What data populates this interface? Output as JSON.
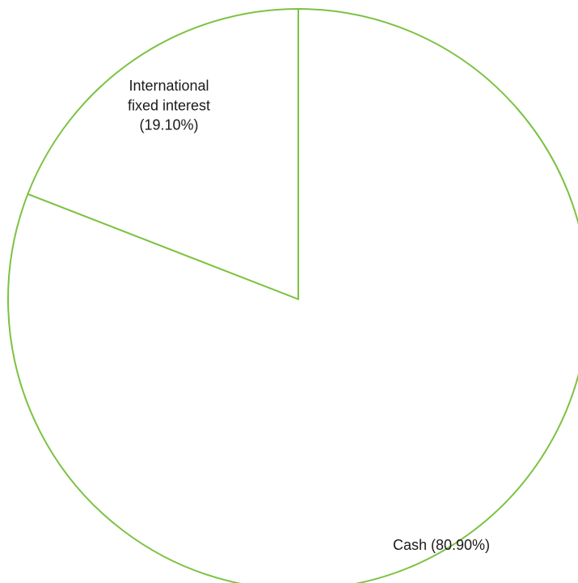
{
  "chart_data": {
    "type": "pie",
    "start_angle_deg": 0,
    "direction": "clockwise",
    "slices": [
      {
        "label": "Cash (80.90%)",
        "value": 80.9
      },
      {
        "label": "International fixed interest (19.10%)",
        "value": 19.1
      }
    ],
    "colors": {
      "slice_fill": "#ffffff",
      "slice_stroke": "#7cc242",
      "label_text": "#1a1a1a"
    }
  }
}
